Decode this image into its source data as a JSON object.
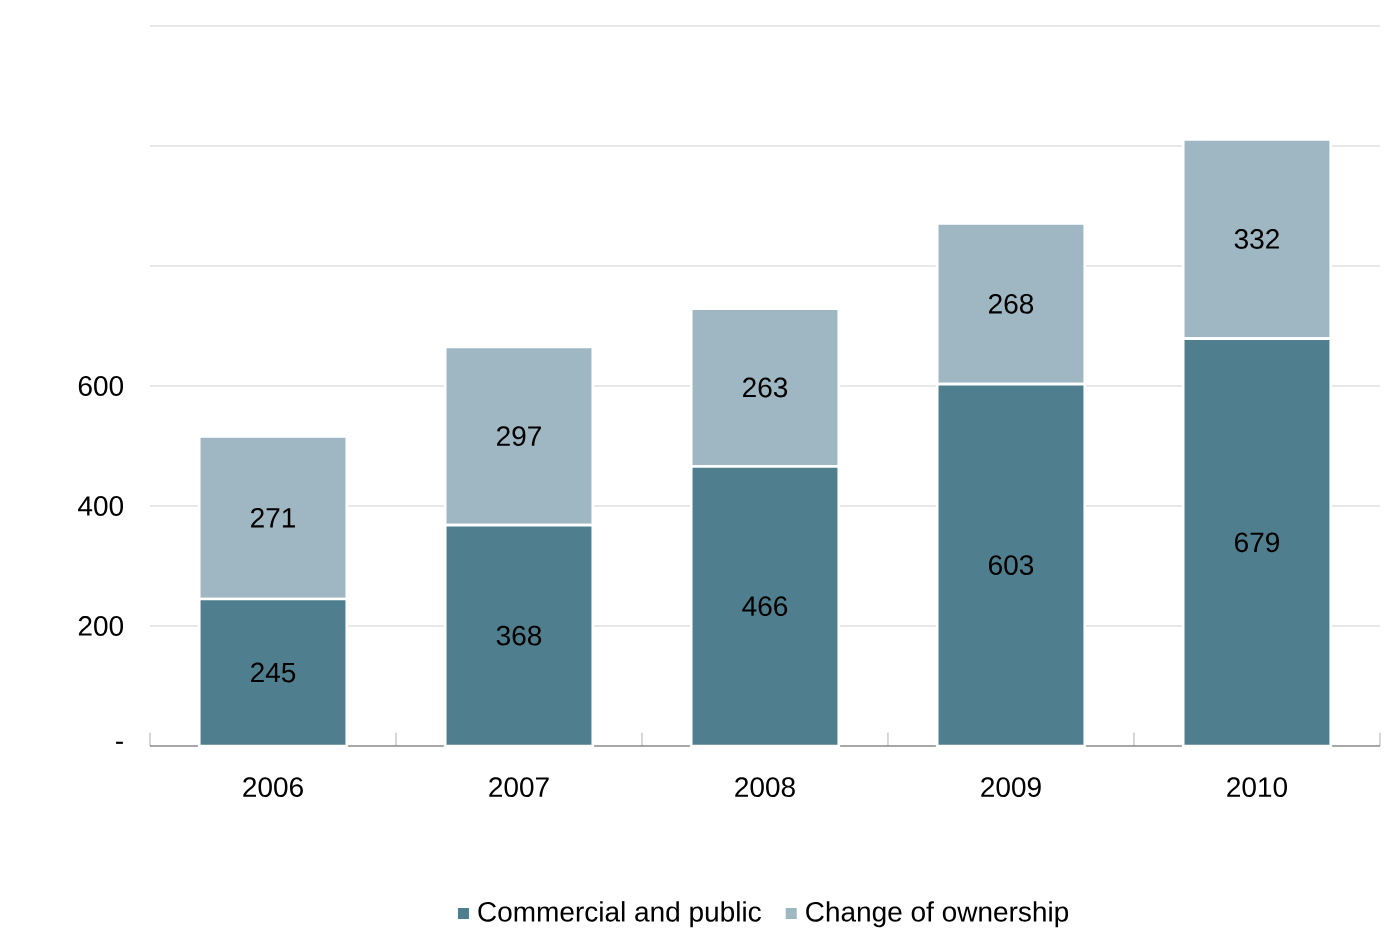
{
  "chart_data": {
    "type": "bar",
    "stacked": true,
    "categories": [
      "2006",
      "2007",
      "2008",
      "2009",
      "2010"
    ],
    "series": [
      {
        "name": "Commercial and public",
        "color": "#4f7f8e",
        "values": [
          245,
          368,
          466,
          603,
          679
        ]
      },
      {
        "name": "Change of ownership",
        "color": "#9fb7c3",
        "values": [
          271,
          297,
          263,
          268,
          332
        ]
      }
    ],
    "ylim": [
      0,
      1200
    ],
    "yticks": [
      {
        "value": 0,
        "label": "-"
      },
      200,
      400,
      600,
      {
        "value": 800,
        "label": null
      },
      {
        "value": 1000,
        "label": null
      },
      {
        "value": 1200,
        "label": null
      }
    ],
    "grid": "y",
    "legend": "bottom",
    "data_labels": true
  }
}
